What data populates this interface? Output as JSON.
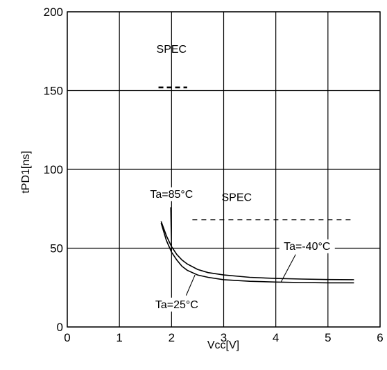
{
  "chart_data": {
    "type": "line",
    "xlabel": "Vcc[V]",
    "ylabel": "tPD1[ns]",
    "xlim": [
      0,
      6
    ],
    "ylim": [
      0,
      200
    ],
    "xticks": [
      0,
      1,
      2,
      3,
      4,
      5,
      6
    ],
    "yticks": [
      0,
      50,
      100,
      150,
      200
    ],
    "grid": true,
    "series": [
      {
        "name": "Ta=85°C",
        "x": [
          1.8,
          1.9,
          2.0,
          2.1,
          2.2,
          2.3,
          2.5,
          2.7,
          3.0,
          3.5,
          4.0,
          4.5,
          5.0,
          5.5
        ],
        "y": [
          67,
          58,
          51,
          46,
          42.5,
          40,
          36.5,
          34.5,
          33,
          31.5,
          30.8,
          30.4,
          30.1,
          30
        ]
      },
      {
        "name": "Ta=25°C",
        "x": [
          1.8,
          1.9,
          2.0,
          2.1,
          2.2,
          2.3,
          2.5,
          2.7,
          3.0,
          3.5,
          4.0,
          4.5,
          5.0,
          5.5
        ],
        "y": [
          66,
          55,
          47.5,
          42.5,
          38.5,
          36,
          33,
          31.5,
          30,
          29,
          28.5,
          28.2,
          28,
          28
        ]
      },
      {
        "name": "Ta=-40°C",
        "x": [],
        "y": []
      }
    ],
    "spec_lines": [
      {
        "label": "SPEC",
        "x": [
          1.75,
          2.3
        ],
        "y": 152
      },
      {
        "label": "SPEC",
        "x": [
          2.4,
          5.5
        ],
        "y": 68
      }
    ],
    "annotations": [
      {
        "text": "Ta=85°C",
        "target_series": 0,
        "target": [
          2.0,
          48
        ]
      },
      {
        "text": "Ta=25°C",
        "target_series": 1,
        "target": [
          2.45,
          33
        ]
      },
      {
        "text": "Ta=-40°C",
        "target_series": 1,
        "target": [
          4.1,
          28.5
        ]
      }
    ]
  }
}
